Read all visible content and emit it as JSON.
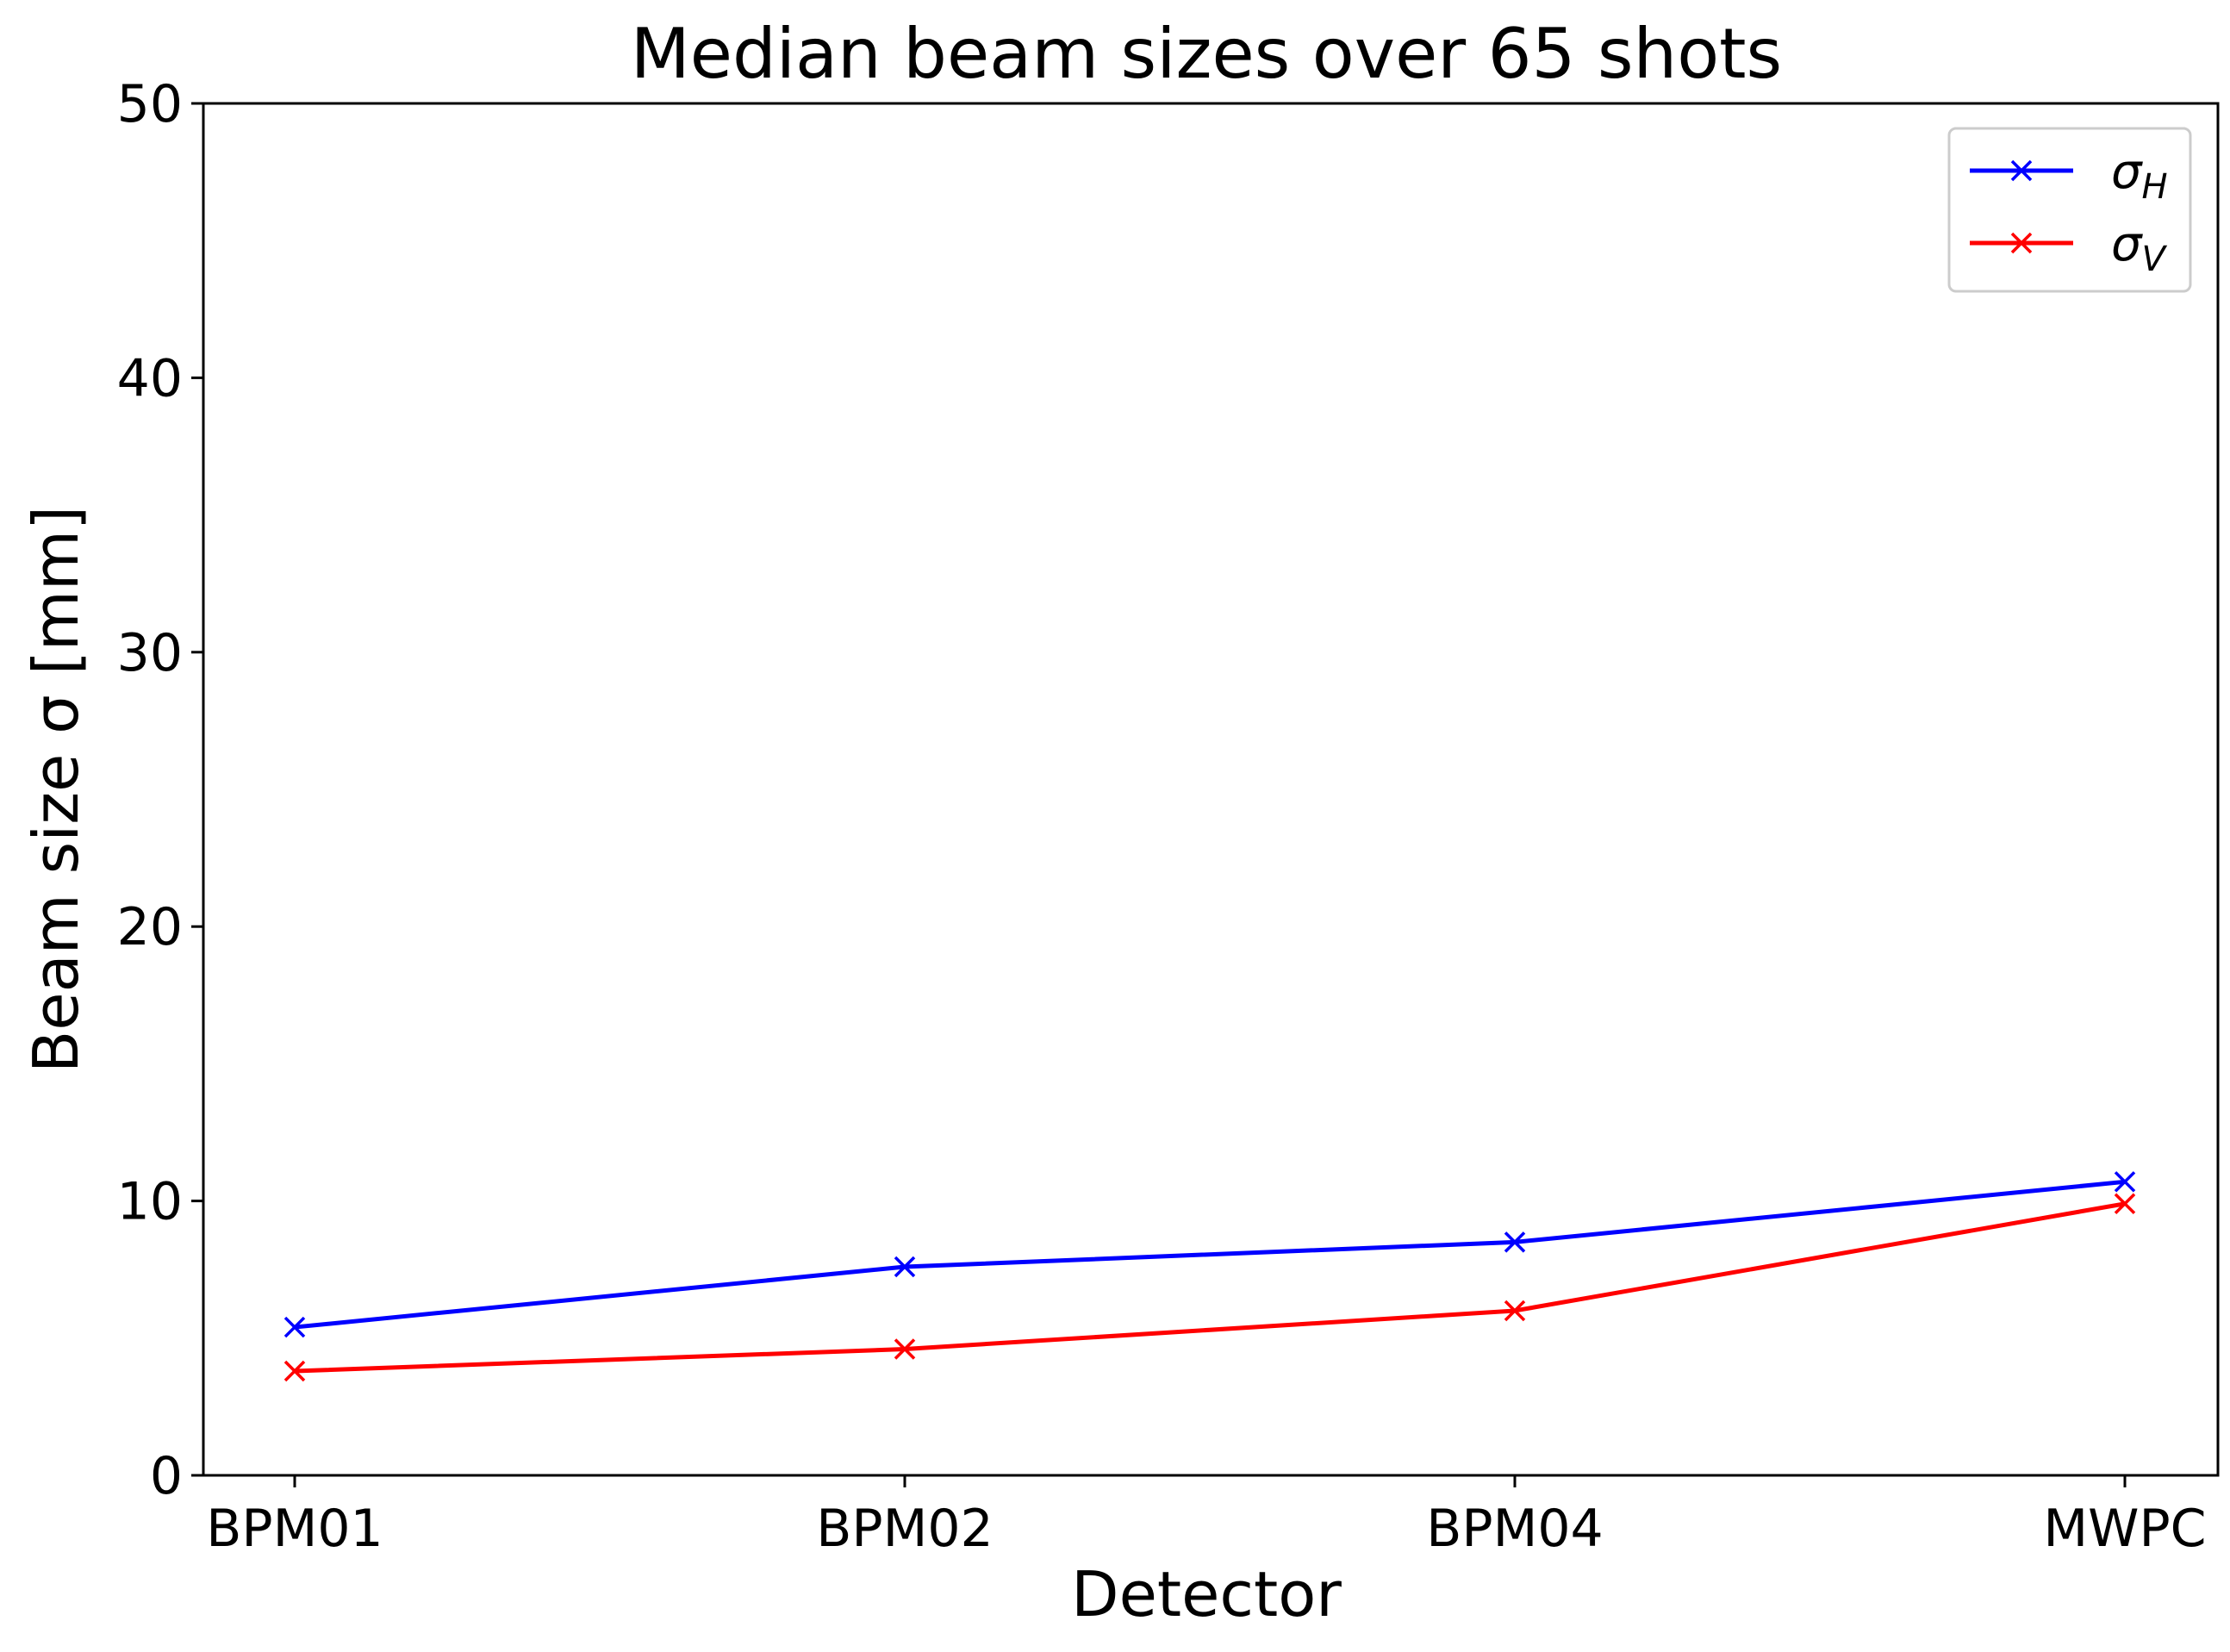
{
  "chart_data": {
    "type": "line",
    "title": "Median beam sizes over 65 shots",
    "xlabel": "Detector",
    "ylabel": "Beam size σ [mm]",
    "categories": [
      "BPM01",
      "BPM02",
      "BPM04",
      "MWPC"
    ],
    "ylim": [
      0,
      50
    ],
    "yticks": [
      "0",
      "10",
      "20",
      "30",
      "40",
      "50"
    ],
    "grid": false,
    "legend_position": "top-right",
    "marker": "x",
    "series": [
      {
        "name": "σH",
        "name_base": "σ",
        "name_sub": "H",
        "color": "#0000ff",
        "values": [
          5.4,
          7.6,
          8.5,
          10.7
        ]
      },
      {
        "name": "σV",
        "name_base": "σ",
        "name_sub": "V",
        "color": "#ff0000",
        "values": [
          3.8,
          4.6,
          6.0,
          9.9
        ]
      }
    ]
  }
}
